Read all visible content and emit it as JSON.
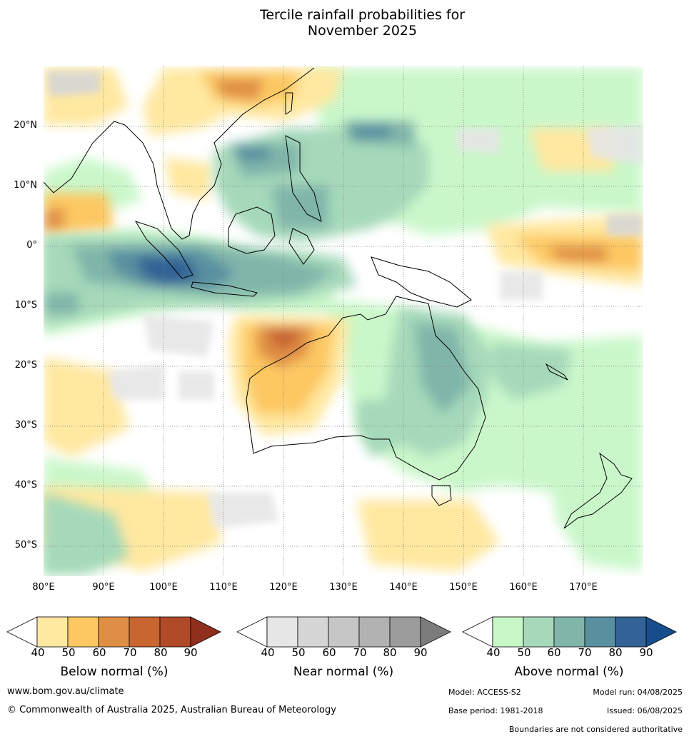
{
  "title": {
    "line1": "Tercile rainfall probabilities for",
    "line2": "November 2025"
  },
  "map": {
    "lon_range": [
      80,
      180
    ],
    "lat_range": [
      -55,
      30
    ],
    "lat_labels": [
      "20°N",
      "10°N",
      "0°",
      "10°S",
      "20°S",
      "30°S",
      "40°S",
      "50°S"
    ],
    "lon_labels": [
      "80°E",
      "90°E",
      "100°E",
      "110°E",
      "120°E",
      "130°E",
      "140°E",
      "150°E",
      "160°E",
      "170°E"
    ],
    "grid": true,
    "colors": {
      "land_outline": "#000000",
      "grid": "#808080"
    }
  },
  "legends": [
    {
      "label": "Below normal (%)",
      "ticks": [
        "40",
        "50",
        "60",
        "70",
        "80",
        "90"
      ],
      "colors": [
        "#ffffff",
        "#ffe8a0",
        "#fdc862",
        "#df8f45",
        "#c86530",
        "#b04a28",
        "#8f2f1c"
      ]
    },
    {
      "label": "Near normal (%)",
      "ticks": [
        "40",
        "50",
        "60",
        "70",
        "80",
        "90"
      ],
      "colors": [
        "#ffffff",
        "#e6e6e6",
        "#d6d6d6",
        "#c6c6c6",
        "#b2b2b2",
        "#9c9c9c",
        "#7c7c7c"
      ]
    },
    {
      "label": "Above normal (%)",
      "ticks": [
        "40",
        "50",
        "60",
        "70",
        "80",
        "90"
      ],
      "colors": [
        "#ffffff",
        "#c8f7c8",
        "#a6d9ba",
        "#80b5aa",
        "#5890a0",
        "#336296",
        "#164d8a"
      ]
    }
  ],
  "footer": {
    "website": "www.bom.gov.au/climate",
    "copyright": "© Commonwealth of Australia 2025, Australian Bureau of Meteorology",
    "model": "Model: ACCESS-S2",
    "model_run": "Model run: 04/08/2025",
    "base_period": "Base period: 1981-2018",
    "issued": "Issued: 06/08/2025",
    "disclaimer": "Boundaries are not considered authoritative"
  }
}
